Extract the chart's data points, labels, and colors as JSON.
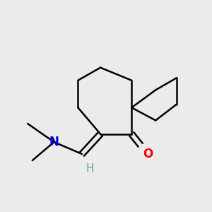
{
  "background_color": "#ebebeb",
  "bond_color": "#000000",
  "bond_width": 1.8,
  "atom_colors": {
    "O": "#ff0000",
    "N": "#0000cc",
    "H": "#5f9ea0",
    "C": "#000000"
  },
  "figsize": [
    3.0,
    3.0
  ],
  "dpi": 100,
  "font_size_atom": 12,
  "font_size_H": 11
}
